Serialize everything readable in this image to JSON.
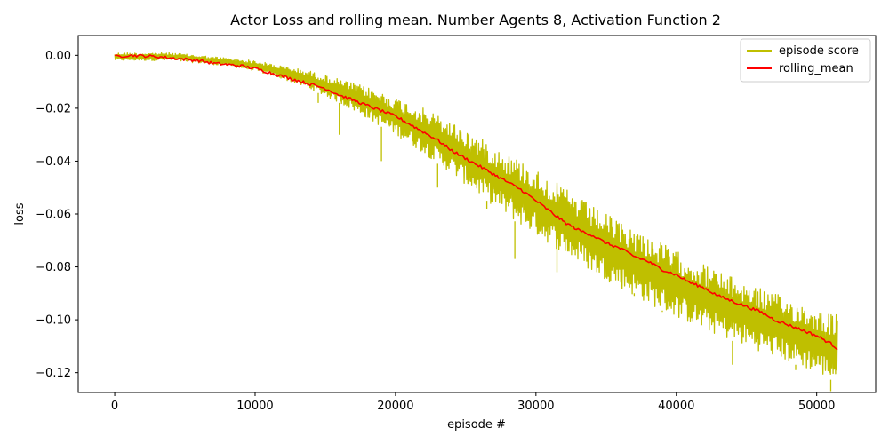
{
  "chart_data": {
    "type": "line",
    "title": "Actor Loss and rolling mean. Number Agents 8, Activation Function 2",
    "xlabel": "episode #",
    "ylabel": "loss",
    "xlim": [
      -2600,
      54200
    ],
    "ylim": [
      -0.1275,
      0.0075
    ],
    "xticks": [
      0,
      10000,
      20000,
      30000,
      40000,
      50000
    ],
    "xtick_labels": [
      "0",
      "10000",
      "20000",
      "30000",
      "40000",
      "50000"
    ],
    "yticks": [
      0.0,
      -0.02,
      -0.04,
      -0.06,
      -0.08,
      -0.1,
      -0.12
    ],
    "ytick_labels": [
      "0.00",
      "−0.02",
      "−0.04",
      "−0.06",
      "−0.08",
      "−0.10",
      "−0.12"
    ],
    "grid": false,
    "legend_position": "top-right",
    "series": [
      {
        "name": "episode score",
        "color": "#bfbf00",
        "style": "noisy band around rolling mean",
        "x": [
          0,
          2000,
          4000,
          6000,
          8000,
          10000,
          12000,
          14000,
          16000,
          18000,
          20000,
          22000,
          24000,
          26000,
          28000,
          30000,
          32000,
          34000,
          36000,
          38000,
          40000,
          42000,
          44000,
          46000,
          48000,
          50000,
          51500
        ],
        "upper": [
          0.001,
          0.001,
          0.001,
          0.0,
          -0.001,
          -0.002,
          -0.004,
          -0.006,
          -0.009,
          -0.012,
          -0.016,
          -0.02,
          -0.025,
          -0.031,
          -0.037,
          -0.043,
          -0.05,
          -0.057,
          -0.063,
          -0.068,
          -0.074,
          -0.079,
          -0.084,
          -0.088,
          -0.092,
          -0.096,
          -0.098
        ],
        "lower": [
          -0.002,
          -0.002,
          -0.002,
          -0.003,
          -0.004,
          -0.006,
          -0.009,
          -0.013,
          -0.018,
          -0.024,
          -0.03,
          -0.037,
          -0.045,
          -0.053,
          -0.061,
          -0.068,
          -0.075,
          -0.082,
          -0.088,
          -0.094,
          -0.099,
          -0.104,
          -0.108,
          -0.112,
          -0.116,
          -0.12,
          -0.124
        ],
        "outliers": [
          {
            "x": 14500,
            "y": -0.018
          },
          {
            "x": 16000,
            "y": -0.03
          },
          {
            "x": 19000,
            "y": -0.04
          },
          {
            "x": 23000,
            "y": -0.05
          },
          {
            "x": 26500,
            "y": -0.058
          },
          {
            "x": 28500,
            "y": -0.077
          },
          {
            "x": 31500,
            "y": -0.082
          },
          {
            "x": 37000,
            "y": -0.09
          },
          {
            "x": 39000,
            "y": -0.097
          },
          {
            "x": 44000,
            "y": -0.117
          },
          {
            "x": 48500,
            "y": -0.119
          },
          {
            "x": 51000,
            "y": -0.127
          }
        ]
      },
      {
        "name": "rolling_mean",
        "color": "#ff0000",
        "x": [
          0,
          1000,
          2000,
          3000,
          4000,
          5000,
          6000,
          7000,
          8000,
          9000,
          10000,
          11000,
          12000,
          13000,
          14000,
          15000,
          16000,
          17000,
          18000,
          19000,
          20000,
          21000,
          22000,
          23000,
          24000,
          25000,
          26000,
          27000,
          28000,
          29000,
          30000,
          31000,
          32000,
          33000,
          34000,
          35000,
          36000,
          37000,
          38000,
          39000,
          40000,
          41000,
          42000,
          43000,
          44000,
          45000,
          46000,
          47000,
          48000,
          49000,
          50000,
          51000,
          51500
        ],
        "values": [
          -0.0005,
          0.0,
          -0.0002,
          -0.0005,
          -0.001,
          -0.0015,
          -0.002,
          -0.003,
          -0.0035,
          -0.004,
          -0.005,
          -0.0065,
          -0.008,
          -0.0095,
          -0.011,
          -0.0125,
          -0.015,
          -0.017,
          -0.019,
          -0.021,
          -0.023,
          -0.026,
          -0.029,
          -0.032,
          -0.036,
          -0.039,
          -0.042,
          -0.045,
          -0.048,
          -0.051,
          -0.055,
          -0.059,
          -0.063,
          -0.066,
          -0.068,
          -0.071,
          -0.073,
          -0.076,
          -0.078,
          -0.081,
          -0.083,
          -0.086,
          -0.088,
          -0.091,
          -0.093,
          -0.095,
          -0.097,
          -0.1,
          -0.102,
          -0.104,
          -0.106,
          -0.109,
          -0.111
        ]
      }
    ]
  }
}
